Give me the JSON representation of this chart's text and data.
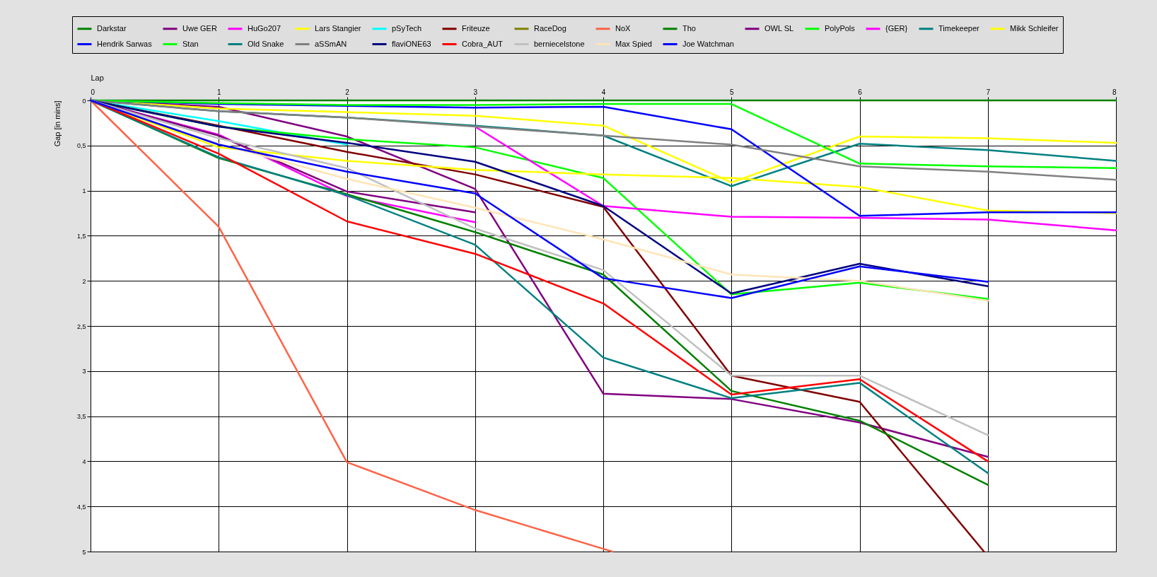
{
  "chart_data": {
    "type": "line",
    "xlabel": "Lap",
    "ylabel": "Gap [in mins]",
    "x": [
      0,
      1,
      2,
      3,
      4,
      5,
      6,
      7,
      8
    ],
    "xlim": [
      0,
      8
    ],
    "xticks": [
      0,
      1,
      2,
      3,
      4,
      5,
      6,
      7,
      8
    ],
    "ylim": [
      5,
      0
    ],
    "yticks": [
      0,
      {
        "value": 0.5,
        "label": "0,5"
      },
      1,
      {
        "value": 1.5,
        "label": "1,5"
      },
      2,
      {
        "value": 2.5,
        "label": "2,5"
      },
      3,
      {
        "value": 3.5,
        "label": "3,5"
      },
      4,
      {
        "value": 4.5,
        "label": "4,5"
      },
      5
    ],
    "grid": true,
    "legend": "top",
    "line_style": "solid",
    "series": [
      {
        "name": "Darkstar",
        "color": "#008000",
        "values": [
          0,
          0,
          0,
          0,
          0,
          0,
          0,
          0,
          0
        ]
      },
      {
        "name": "Uwe GER",
        "color": "#800080",
        "values": [
          0,
          0.07,
          0.4,
          0.98,
          3.25,
          3.31,
          3.57,
          3.95,
          null
        ]
      },
      {
        "name": "HuGo207",
        "color": "#ff00ff",
        "values": [
          0,
          0.38,
          1.06,
          1.35,
          null,
          null,
          null,
          null,
          null
        ]
      },
      {
        "name": "Lars Stangier",
        "color": "#ffff00",
        "values": [
          0,
          0.09,
          0.13,
          0.17,
          0.28,
          0.91,
          0.4,
          0.42,
          0.47
        ]
      },
      {
        "name": "pSyTech",
        "color": "#00ffff",
        "values": [
          0,
          0.23,
          0.49,
          null,
          null,
          null,
          null,
          null,
          null
        ]
      },
      {
        "name": "Friteuze",
        "color": "#800000",
        "x": [
          0,
          1,
          2,
          3,
          4,
          5,
          6,
          6.97
        ],
        "values": [
          0,
          0.28,
          0.57,
          0.82,
          1.18,
          3.05,
          3.34,
          5
        ]
      },
      {
        "name": "RaceDog",
        "color": "#808000",
        "values": [
          null,
          null,
          null,
          null,
          null,
          null,
          null,
          null,
          null
        ]
      },
      {
        "name": "NoX",
        "color": "#ff6347",
        "x": [
          0,
          1,
          2,
          3,
          4,
          4.07
        ],
        "values": [
          0,
          1.4,
          4.01,
          4.54,
          4.97,
          5
        ]
      },
      {
        "name": "Tho",
        "color": "#008000",
        "values": [
          0,
          0.64,
          1.04,
          1.46,
          1.93,
          3.22,
          3.55,
          4.26,
          null
        ]
      },
      {
        "name": "OWL SL",
        "color": "#800080",
        "values": [
          0,
          0.39,
          1.01,
          1.24,
          null,
          null,
          null,
          null,
          null
        ]
      },
      {
        "name": "PolyPols",
        "color": "#00ff00",
        "values": [
          0,
          0.29,
          0.43,
          0.52,
          0.86,
          2.15,
          2.02,
          2.2,
          null
        ]
      },
      {
        "name": "{GER}",
        "color": "#ff00ff",
        "values": [
          null,
          null,
          null,
          0.29,
          1.17,
          1.29,
          1.3,
          1.32,
          1.44
        ]
      },
      {
        "name": "Timekeeper",
        "color": "#008080",
        "values": [
          0,
          0.12,
          0.19,
          0.28,
          0.39,
          0.95,
          0.48,
          0.55,
          0.67
        ]
      },
      {
        "name": "Mikk Schleifer",
        "color": "#ffff00",
        "values": [
          0,
          0.52,
          0.67,
          0.77,
          0.82,
          0.86,
          0.96,
          1.22,
          1.25
        ]
      },
      {
        "name": "Hendrik Sarwas",
        "color": "#0000ff",
        "values": [
          0,
          0.04,
          0.06,
          0.08,
          0.07,
          0.32,
          1.28,
          1.24,
          1.24
        ]
      },
      {
        "name": "Stan",
        "color": "#00ff00",
        "values": [
          0,
          0.03,
          0.05,
          0.05,
          0.04,
          0.04,
          0.7,
          0.73,
          0.75
        ]
      },
      {
        "name": "Old Snake",
        "color": "#008080",
        "values": [
          0,
          0.63,
          1.05,
          1.6,
          2.85,
          3.3,
          3.13,
          4.13,
          null
        ]
      },
      {
        "name": "aSSmAN",
        "color": "#808080",
        "values": [
          0,
          0.12,
          0.19,
          0.29,
          0.39,
          0.49,
          0.73,
          0.79,
          0.88
        ]
      },
      {
        "name": "flaviONE63",
        "color": "#000080",
        "values": [
          0,
          0.29,
          0.47,
          0.68,
          1.17,
          2.14,
          1.81,
          2.06,
          null
        ]
      },
      {
        "name": "Cobra_AUT",
        "color": "#ff0000",
        "values": [
          0,
          0.59,
          1.34,
          1.7,
          2.25,
          3.26,
          3.09,
          4.0,
          null
        ]
      },
      {
        "name": "berniecelstone",
        "color": "#c0c0c0",
        "values": [
          0,
          0.42,
          0.75,
          1.42,
          1.88,
          3.05,
          3.05,
          3.71,
          null
        ]
      },
      {
        "name": "Max Spied",
        "color": "#ffe4b5",
        "values": [
          0,
          0.48,
          0.87,
          1.19,
          1.54,
          1.93,
          2.0,
          2.22,
          null
        ]
      },
      {
        "name": "Joe Watchman",
        "color": "#0000ff",
        "values": [
          0,
          0.49,
          0.79,
          1.03,
          1.97,
          2.19,
          1.84,
          2.01,
          null
        ]
      }
    ]
  }
}
